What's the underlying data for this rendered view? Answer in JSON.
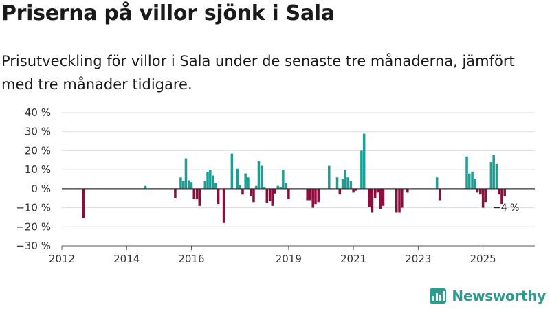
{
  "chart_data": {
    "type": "bar",
    "title": "Priserna på villor sjönk i Sala",
    "subtitle": "Prisutveckling för villor i Sala under de senaste tre månaderna, jämfört med tre månader tidigare.",
    "ylabel": "",
    "xlabel": "",
    "ylim": [
      -30,
      40
    ],
    "y_ticks": [
      -30,
      -20,
      -10,
      0,
      10,
      20,
      30,
      40
    ],
    "y_tick_labels": [
      "−30 %",
      "−20 %",
      "−10 %",
      "0 %",
      "10 %",
      "20 %",
      "30 %",
      "40 %"
    ],
    "xlim": [
      2012.0,
      2026.6
    ],
    "x_ticks": [
      2012,
      2014,
      2016,
      2019,
      2021,
      2023,
      2025
    ],
    "x_tick_labels": [
      "2012",
      "2014",
      "2016",
      "2019",
      "2021",
      "2023",
      "2025"
    ],
    "positive_color": "#1b9e93",
    "negative_color": "#8c0d3c",
    "bar_width_years": 0.075,
    "annotation": {
      "text": "−4 %",
      "x": 2025.67,
      "y": -4
    },
    "series": [
      {
        "name": "Prisutveckling",
        "points": [
          {
            "x": 2012.67,
            "y": -15.5
          },
          {
            "x": 2014.58,
            "y": 1.5
          },
          {
            "x": 2015.5,
            "y": -5
          },
          {
            "x": 2015.67,
            "y": 6
          },
          {
            "x": 2015.75,
            "y": 4
          },
          {
            "x": 2015.83,
            "y": 16
          },
          {
            "x": 2015.92,
            "y": 4.5
          },
          {
            "x": 2016.0,
            "y": 3.5
          },
          {
            "x": 2016.08,
            "y": -5.5
          },
          {
            "x": 2016.17,
            "y": -5.5
          },
          {
            "x": 2016.25,
            "y": -9
          },
          {
            "x": 2016.42,
            "y": 4
          },
          {
            "x": 2016.5,
            "y": 9
          },
          {
            "x": 2016.58,
            "y": 10
          },
          {
            "x": 2016.67,
            "y": 7
          },
          {
            "x": 2016.75,
            "y": 3
          },
          {
            "x": 2016.83,
            "y": -8
          },
          {
            "x": 2017.0,
            "y": -18
          },
          {
            "x": 2017.25,
            "y": 18.5
          },
          {
            "x": 2017.42,
            "y": 10.5
          },
          {
            "x": 2017.5,
            "y": 2
          },
          {
            "x": 2017.58,
            "y": -3
          },
          {
            "x": 2017.67,
            "y": 8
          },
          {
            "x": 2017.75,
            "y": 6
          },
          {
            "x": 2017.83,
            "y": -4
          },
          {
            "x": 2017.92,
            "y": -7
          },
          {
            "x": 2018.0,
            "y": 1.5
          },
          {
            "x": 2018.08,
            "y": 14.5
          },
          {
            "x": 2018.17,
            "y": 12
          },
          {
            "x": 2018.25,
            "y": 1
          },
          {
            "x": 2018.33,
            "y": -7.5
          },
          {
            "x": 2018.42,
            "y": -6.5
          },
          {
            "x": 2018.5,
            "y": -9
          },
          {
            "x": 2018.58,
            "y": -2.5
          },
          {
            "x": 2018.67,
            "y": 1.5
          },
          {
            "x": 2018.75,
            "y": 1
          },
          {
            "x": 2018.83,
            "y": 10
          },
          {
            "x": 2018.92,
            "y": 3
          },
          {
            "x": 2019.0,
            "y": -5.5
          },
          {
            "x": 2019.58,
            "y": -6
          },
          {
            "x": 2019.67,
            "y": -6
          },
          {
            "x": 2019.75,
            "y": -10
          },
          {
            "x": 2019.83,
            "y": -8
          },
          {
            "x": 2019.92,
            "y": -7
          },
          {
            "x": 2020.25,
            "y": 12
          },
          {
            "x": 2020.5,
            "y": 6
          },
          {
            "x": 2020.58,
            "y": -3
          },
          {
            "x": 2020.67,
            "y": 5
          },
          {
            "x": 2020.75,
            "y": 10
          },
          {
            "x": 2020.83,
            "y": 6
          },
          {
            "x": 2020.92,
            "y": 4
          },
          {
            "x": 2021.0,
            "y": -2
          },
          {
            "x": 2021.08,
            "y": -1
          },
          {
            "x": 2021.25,
            "y": 20
          },
          {
            "x": 2021.33,
            "y": 29
          },
          {
            "x": 2021.5,
            "y": -9.5
          },
          {
            "x": 2021.58,
            "y": -12.5
          },
          {
            "x": 2021.67,
            "y": -5
          },
          {
            "x": 2021.75,
            "y": -2
          },
          {
            "x": 2021.83,
            "y": -10.5
          },
          {
            "x": 2021.92,
            "y": -9
          },
          {
            "x": 2022.33,
            "y": -12.5
          },
          {
            "x": 2022.42,
            "y": -12.5
          },
          {
            "x": 2022.5,
            "y": -10
          },
          {
            "x": 2022.67,
            "y": -2
          },
          {
            "x": 2023.58,
            "y": 6
          },
          {
            "x": 2023.67,
            "y": -6
          },
          {
            "x": 2024.5,
            "y": 17
          },
          {
            "x": 2024.58,
            "y": 8
          },
          {
            "x": 2024.67,
            "y": 9
          },
          {
            "x": 2024.75,
            "y": 5
          },
          {
            "x": 2024.83,
            "y": -2
          },
          {
            "x": 2024.92,
            "y": -3
          },
          {
            "x": 2025.0,
            "y": -10
          },
          {
            "x": 2025.08,
            "y": -7
          },
          {
            "x": 2025.25,
            "y": 14
          },
          {
            "x": 2025.33,
            "y": 18
          },
          {
            "x": 2025.42,
            "y": 13
          },
          {
            "x": 2025.5,
            "y": -3
          },
          {
            "x": 2025.58,
            "y": -8
          },
          {
            "x": 2025.67,
            "y": -4
          }
        ]
      }
    ]
  },
  "brand": {
    "name": "Newsworthy",
    "icon": "newsworthy-logo-icon",
    "color": "#2a9d8f"
  }
}
